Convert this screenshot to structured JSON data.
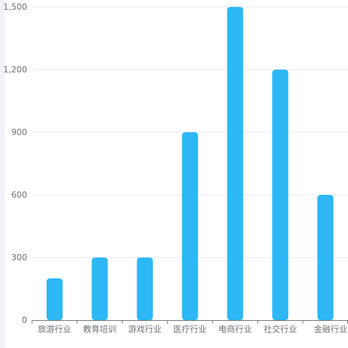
{
  "chart_data": {
    "type": "bar",
    "title": "",
    "xlabel": "",
    "ylabel": "",
    "categories": [
      "旅游行业",
      "教育培训",
      "游戏行业",
      "医疗行业",
      "电商行业",
      "社交行业",
      "金融行业"
    ],
    "values": [
      200,
      300,
      300,
      900,
      1500,
      1200,
      600
    ],
    "ylim": [
      0,
      1500
    ],
    "yticks": [
      0,
      300,
      600,
      900,
      1200,
      1500
    ],
    "ytick_labels": [
      "0",
      "300",
      "600",
      "900",
      "1,200",
      "1,500"
    ],
    "grid": true,
    "legend": "none"
  },
  "colors": {
    "bar": "#2db7f5",
    "grid": "#e0e6f1",
    "axis": "#6e7079",
    "tick_text": "#6e7079"
  }
}
